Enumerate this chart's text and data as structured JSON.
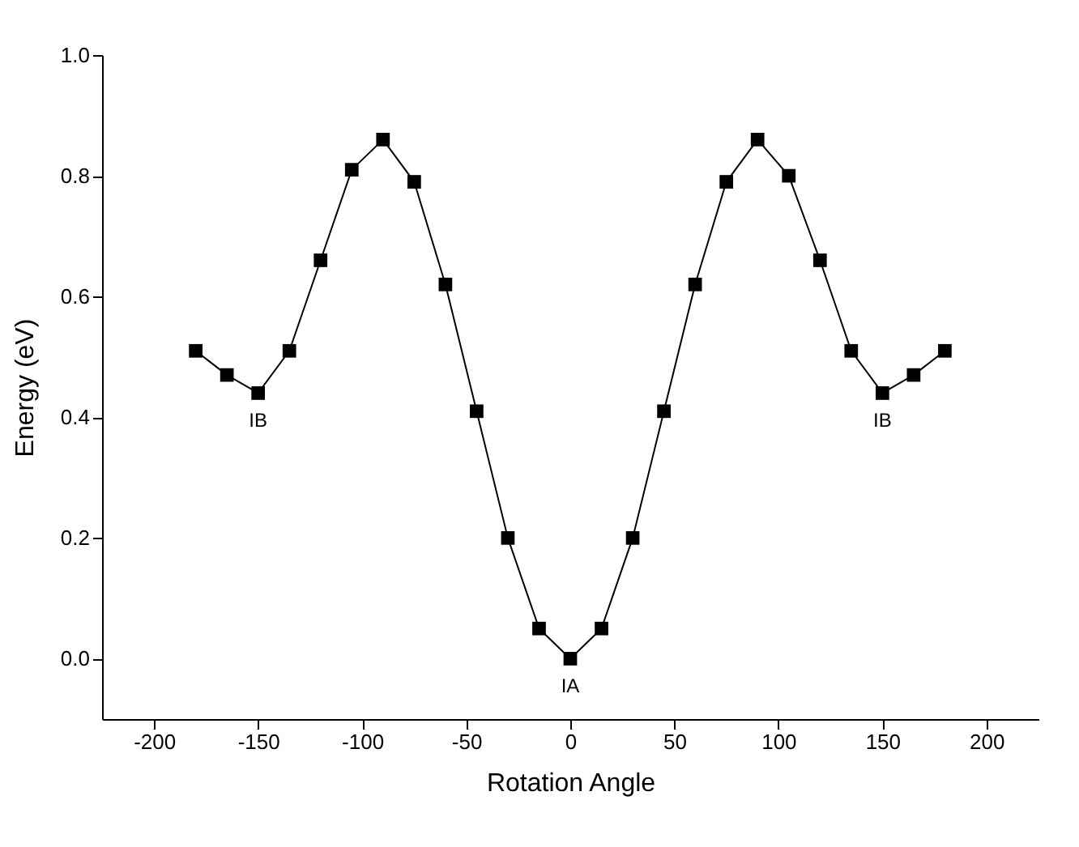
{
  "chart_data": {
    "type": "line",
    "xlabel": "Rotation Angle",
    "ylabel": "Energy (eV)",
    "x": [
      -180,
      -165,
      -150,
      -135,
      -120,
      -105,
      -90,
      -75,
      -60,
      -45,
      -30,
      -15,
      0,
      15,
      30,
      45,
      60,
      75,
      90,
      105,
      120,
      135,
      150,
      165,
      180
    ],
    "series": [
      {
        "color": "#000000",
        "values": [
          0.51,
          0.47,
          0.44,
          0.51,
          0.66,
          0.81,
          0.86,
          0.79,
          0.62,
          0.41,
          0.2,
          0.05,
          0,
          0.05,
          0.2,
          0.41,
          0.62,
          0.79,
          0.86,
          0.8,
          0.66,
          0.51,
          0.44,
          0.47,
          0.51
        ]
      }
    ],
    "marker": "square",
    "line_style": "solid",
    "grid": false,
    "xlim": [
      -225,
      225
    ],
    "xticks": [
      -200,
      -150,
      -100,
      -50,
      0,
      50,
      100,
      150,
      200
    ],
    "ylim": [
      -0.1,
      1.0
    ],
    "yticks": [
      {
        "value": 0,
        "label": "0.0"
      },
      0.2,
      0.4,
      0.6,
      0.8,
      {
        "value": 1,
        "label": "1.0"
      }
    ],
    "annotations": [
      {
        "text": "IB",
        "x": -150,
        "y": 0.44
      },
      {
        "text": "IA",
        "x": 0,
        "y": 0
      },
      {
        "text": "IB",
        "x": 150,
        "y": 0.44
      }
    ]
  }
}
